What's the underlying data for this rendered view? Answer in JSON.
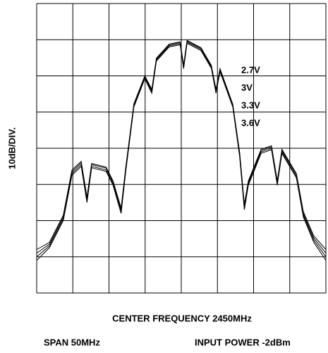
{
  "chart_data": {
    "type": "line",
    "ylabel": "10dB/DIV.",
    "xlabel": "CENTER FREQUENCY 2450MHz",
    "annotations": [
      "SPAN 50MHz",
      "INPUT POWER -2dBm"
    ],
    "x": [
      2425,
      2427.2,
      2429.6,
      2431.1,
      2432.7,
      2433.7,
      2434.5,
      2437.0,
      2438.2,
      2439.6,
      2440.4,
      2441.8,
      2443.7,
      2444.9,
      2445.7,
      2447.9,
      2449.8,
      2450.4,
      2451.0,
      2453.4,
      2455.2,
      2456.0,
      2456.7,
      2458.9,
      2460.1,
      2460.9,
      2461.6,
      2463.8,
      2465.6,
      2466.6,
      2467.4,
      2469.9,
      2471.1,
      2472.9,
      2475
    ],
    "series": [
      {
        "name": "2.7V",
        "color": "#000000",
        "values": [
          -70,
          -67,
          -59.5,
          -47,
          -44.5,
          -54.6,
          -45,
          -46,
          -49.8,
          -57.6,
          -46,
          -28.3,
          -20.5,
          -24.4,
          -15.6,
          -11.7,
          -11.1,
          -17.6,
          -10.7,
          -12.7,
          -17.6,
          -24.4,
          -18.5,
          -28.3,
          -42,
          -56.6,
          -49.8,
          -41,
          -40,
          -49.8,
          -41,
          -47.8,
          -58.5,
          -65.4,
          -70
        ]
      },
      {
        "name": "3V",
        "color": "#000000",
        "values": [
          -69,
          -66.5,
          -59,
          -46.5,
          -44,
          -54,
          -44.5,
          -45.5,
          -49.3,
          -57,
          -45.5,
          -28,
          -20.2,
          -24,
          -15.3,
          -11.4,
          -10.8,
          -17.2,
          -10.4,
          -12.4,
          -17.3,
          -24,
          -18.2,
          -28,
          -41.5,
          -56,
          -49.3,
          -40.6,
          -39.6,
          -49.3,
          -40.6,
          -47.3,
          -58,
          -64.8,
          -69
        ]
      },
      {
        "name": "3.3V",
        "color": "#000000",
        "values": [
          -68,
          -66,
          -58.5,
          -46,
          -43.6,
          -53.5,
          -44.2,
          -45.2,
          -49,
          -56.5,
          -45.2,
          -27.7,
          -20,
          -23.7,
          -15.1,
          -11.2,
          -10.6,
          -17,
          -10.2,
          -12.2,
          -17.1,
          -23.7,
          -18,
          -27.8,
          -41.2,
          -55.5,
          -49,
          -40.3,
          -39.3,
          -49,
          -40.3,
          -47,
          -57.5,
          -64.2,
          -68
        ]
      },
      {
        "name": "3.6V",
        "color": "#000000",
        "values": [
          -71,
          -67.5,
          -60,
          -47.5,
          -45,
          -55,
          -45.4,
          -46.4,
          -50.2,
          -58,
          -46.4,
          -28.6,
          -20.8,
          -24.8,
          -15.9,
          -12,
          -11.4,
          -18,
          -11,
          -13,
          -17.9,
          -24.8,
          -18.8,
          -28.6,
          -42.4,
          -57,
          -50.2,
          -41.4,
          -40.4,
          -50.2,
          -41.4,
          -48.2,
          -59,
          -66,
          -71
        ]
      }
    ],
    "xlim": [
      2425,
      2475
    ],
    "xticks": [
      2425,
      2431.25,
      2437.5,
      2443.75,
      2450,
      2456.25,
      2462.5,
      2468.75,
      2475
    ],
    "ylim": [
      -80,
      0
    ],
    "yticks": [
      -80,
      -70,
      -60,
      -50,
      -40,
      -30,
      -20,
      -10,
      0
    ],
    "grid": true
  }
}
